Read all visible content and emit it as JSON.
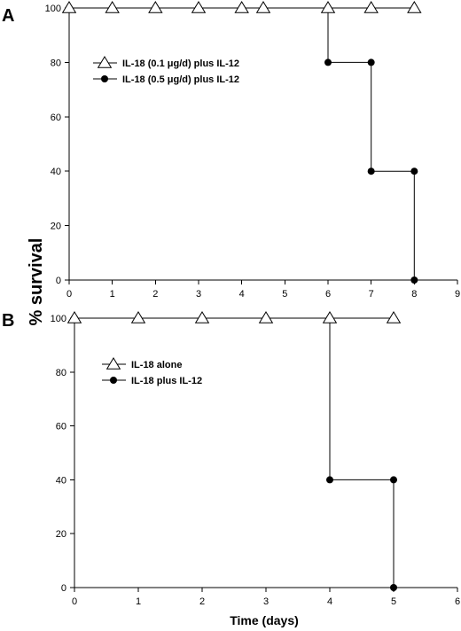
{
  "figure": {
    "ylabel": "% survival",
    "xlabel": "Time (days)"
  },
  "chart_data": [
    {
      "type": "line",
      "panel": "A",
      "step": true,
      "xlim": [
        0,
        9
      ],
      "ylim": [
        0,
        100
      ],
      "xticks": [
        "0",
        "1",
        "2",
        "3",
        "4",
        "5",
        "6",
        "7",
        "8",
        "9"
      ],
      "yticks": [
        "0",
        "20",
        "40",
        "60",
        "80",
        "100"
      ],
      "legend_position": "upper-left",
      "series": [
        {
          "name": "IL-18 (0.1 μg/d) plus IL-12",
          "marker": "open-triangle",
          "x": [
            0,
            1,
            2,
            3,
            4,
            4.5,
            6,
            7,
            8
          ],
          "y": [
            100,
            100,
            100,
            100,
            100,
            100,
            100,
            100,
            100
          ]
        },
        {
          "name": "IL-18 (0.5 μg/d) plus IL-12",
          "marker": "filled-circle",
          "x": [
            0,
            1,
            2,
            3,
            4,
            4.5,
            6,
            6,
            7,
            7,
            8,
            8
          ],
          "y": [
            100,
            100,
            100,
            100,
            100,
            100,
            100,
            80,
            80,
            40,
            40,
            0
          ]
        }
      ]
    },
    {
      "type": "line",
      "panel": "B",
      "step": true,
      "xlim": [
        0,
        6
      ],
      "ylim": [
        0,
        100
      ],
      "xticks": [
        "0",
        "1",
        "2",
        "3",
        "4",
        "5",
        "6"
      ],
      "yticks": [
        "0",
        "20",
        "40",
        "60",
        "80",
        "100"
      ],
      "legend_position": "upper-left",
      "series": [
        {
          "name": "IL-18 alone",
          "marker": "open-triangle",
          "x": [
            0,
            1,
            2,
            3,
            4,
            5
          ],
          "y": [
            100,
            100,
            100,
            100,
            100,
            100
          ]
        },
        {
          "name": "IL-18 plus IL-12",
          "marker": "filled-circle",
          "x": [
            0,
            1,
            2,
            3,
            4,
            4,
            5,
            5
          ],
          "y": [
            100,
            100,
            100,
            100,
            100,
            40,
            40,
            0
          ]
        }
      ]
    }
  ]
}
